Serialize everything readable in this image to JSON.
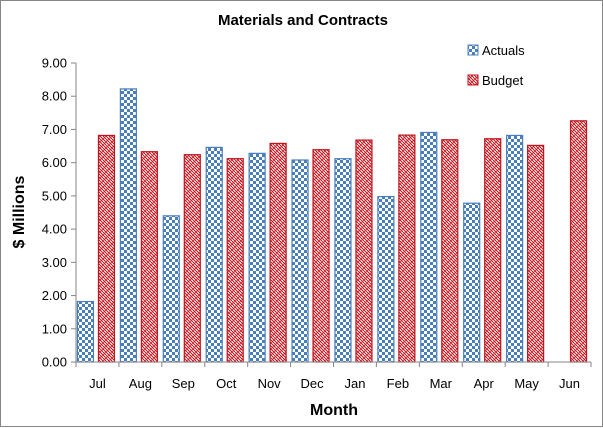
{
  "chart_data": {
    "type": "bar",
    "title": "Materials and Contracts",
    "xlabel": "Month",
    "ylabel": "$ Millions",
    "ylim": [
      0,
      9
    ],
    "ytick_step": 1,
    "ytick_labels": [
      "0.00",
      "1.00",
      "2.00",
      "3.00",
      "4.00",
      "5.00",
      "6.00",
      "7.00",
      "8.00",
      "9.00"
    ],
    "grid": false,
    "legend_position": "top-right",
    "categories": [
      "Jul",
      "Aug",
      "Sep",
      "Oct",
      "Nov",
      "Dec",
      "Jan",
      "Feb",
      "Mar",
      "Apr",
      "May",
      "Jun"
    ],
    "series": [
      {
        "name": "Actuals",
        "color": "#4a7ebb",
        "pattern": "checker",
        "values": [
          1.82,
          8.22,
          4.4,
          6.46,
          6.28,
          6.08,
          6.12,
          4.98,
          6.91,
          4.78,
          6.82,
          null
        ]
      },
      {
        "name": "Budget",
        "color": "#c0141d",
        "pattern": "weave",
        "values": [
          6.82,
          6.33,
          6.24,
          6.12,
          6.58,
          6.39,
          6.68,
          6.83,
          6.69,
          6.72,
          6.52,
          7.26
        ]
      }
    ]
  }
}
